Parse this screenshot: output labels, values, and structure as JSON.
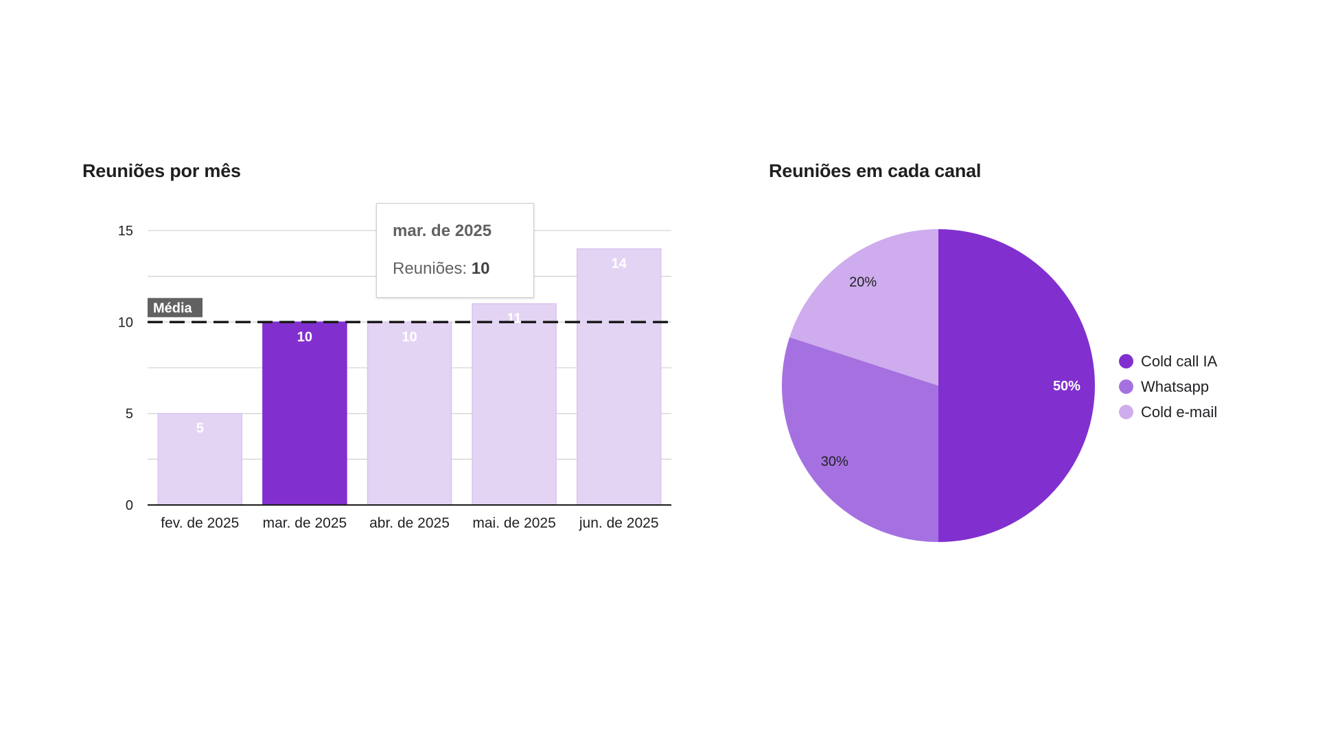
{
  "chart_data": [
    {
      "type": "bar",
      "title": "Reuniões por mês",
      "categories": [
        "fev. de 2025",
        "mar. de 2025",
        "abr. de 2025",
        "mai. de 2025",
        "jun. de 2025"
      ],
      "values": [
        5,
        10,
        10,
        11,
        14
      ],
      "data_labels": [
        "5",
        "10",
        "10",
        "11",
        "14"
      ],
      "highlighted_category": "mar. de 2025",
      "ylim": [
        0,
        15
      ],
      "yticks": [
        0,
        5,
        10,
        15
      ],
      "ytick_labels": [
        "0",
        "5",
        "10",
        "15"
      ],
      "grid": true,
      "reference_line": {
        "label": "Média",
        "value": 10,
        "style": "dashed"
      },
      "colors": {
        "bar": "#e4d4f4",
        "bar_border": "#dac4ef",
        "highlight": "#8130cf",
        "label_light": "#ffffff",
        "reference": "#1a1a1a",
        "reference_label_bg": "#616161"
      },
      "tooltip": {
        "title": "mar. de 2025",
        "label": "Reuniões: ",
        "value": "10"
      }
    },
    {
      "type": "pie",
      "title": "Reuniões em cada canal",
      "slices": [
        {
          "label": "Cold call IA",
          "value": 50,
          "pct_label": "50%",
          "color": "#8130cf",
          "label_color": "#ffffff"
        },
        {
          "label": "Whatsapp",
          "value": 30,
          "pct_label": "30%",
          "color": "#a571e0",
          "label_color": "#202124"
        },
        {
          "label": "Cold e-mail",
          "value": 20,
          "pct_label": "20%",
          "color": "#ceaced",
          "label_color": "#202124"
        }
      ],
      "legend_position": "right"
    }
  ]
}
